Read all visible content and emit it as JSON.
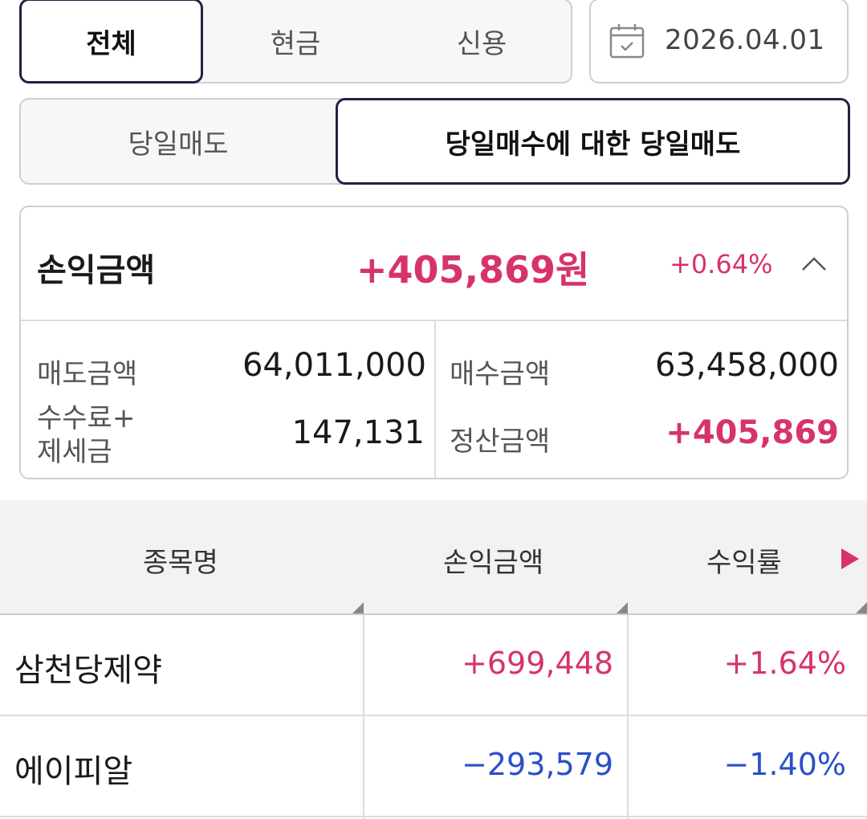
{
  "account_tabs": {
    "all": "전체",
    "cash": "현금",
    "credit": "신용"
  },
  "date": {
    "value": "2026.04.01",
    "icon": "calendar-icon"
  },
  "trade_tabs": {
    "same_day_sell": "당일매도",
    "same_day_buy_sell": "당일매수에 대한 당일매도"
  },
  "summary": {
    "label": "손익금액",
    "amount": "+405,869원",
    "percent": "+0.64%",
    "toggle_icon": "chevron-up-icon",
    "sell_label": "매도금액",
    "sell_value": "64,011,000",
    "fee_label_1": "수수료+",
    "fee_label_2": "제세금",
    "fee_value": "147,131",
    "buy_label": "매수금액",
    "buy_value": "63,458,000",
    "settle_label": "정산금액",
    "settle_value": "+405,869"
  },
  "table": {
    "headers": {
      "name": "종목명",
      "pl": "손익금액",
      "rate": "수익률"
    },
    "rows": [
      {
        "name": "삼천당제약",
        "pl": "+699,448",
        "rate": "+1.64%"
      },
      {
        "name": "에이피알",
        "pl": "−293,579",
        "rate": "−1.40%"
      }
    ]
  },
  "colors": {
    "positive": "#d6336c",
    "negative": "#2b4fc7",
    "active_border": "#1e2246"
  }
}
